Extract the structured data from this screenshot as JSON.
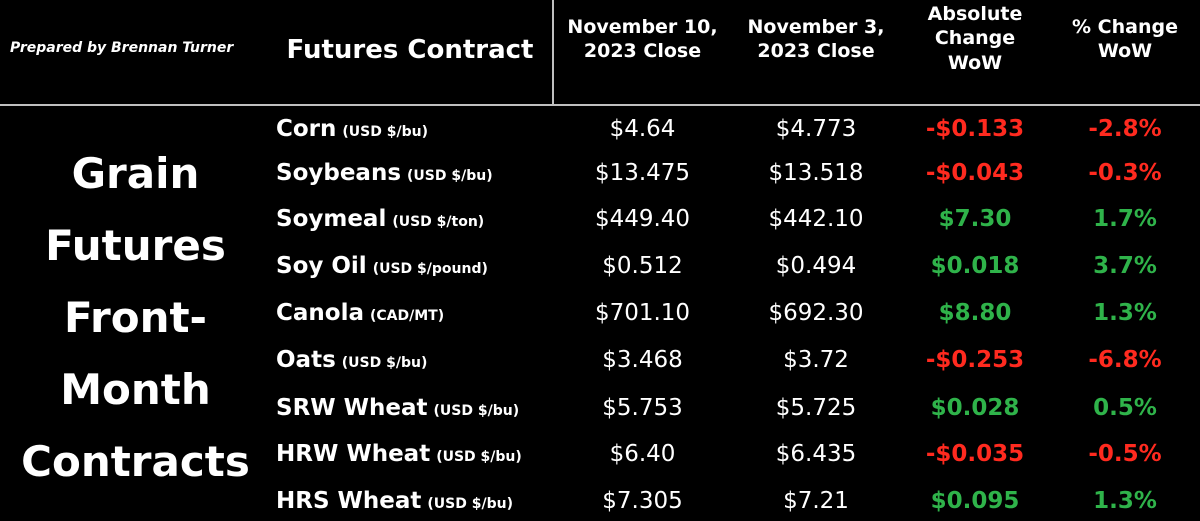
{
  "credit": "Prepared by Brennan Turner",
  "headers": {
    "contract": "Futures Contract",
    "col1": "November 10,\n2023 Close",
    "col2": "November 3,\n2023 Close",
    "col3": "Absolute\nChange\nWoW",
    "col4": "% Change\nWoW"
  },
  "category": [
    "Grain",
    "Futures",
    "Front-",
    "Month",
    "Contracts"
  ],
  "colors": {
    "negative": "#ff2a1f",
    "positive": "#2fb34a",
    "background": "#000000",
    "text": "#ffffff"
  },
  "rows": [
    {
      "name": "Corn",
      "unit": "(USD $/bu)",
      "nov10": "$4.64",
      "nov3": "$4.773",
      "abs_change": "-$0.133",
      "pct_change": "-2.8%",
      "direction": "neg"
    },
    {
      "name": "Soybeans",
      "unit": "(USD $/bu)",
      "nov10": "$13.475",
      "nov3": "$13.518",
      "abs_change": "-$0.043",
      "pct_change": "-0.3%",
      "direction": "neg"
    },
    {
      "name": "Soymeal",
      "unit": "(USD $/ton)",
      "nov10": "$449.40",
      "nov3": "$442.10",
      "abs_change": "$7.30",
      "pct_change": "1.7%",
      "direction": "pos"
    },
    {
      "name": "Soy Oil",
      "unit": "(USD $/pound)",
      "nov10": "$0.512",
      "nov3": "$0.494",
      "abs_change": "$0.018",
      "pct_change": "3.7%",
      "direction": "pos"
    },
    {
      "name": "Canola",
      "unit": "(CAD/MT)",
      "nov10": "$701.10",
      "nov3": "$692.30",
      "abs_change": "$8.80",
      "pct_change": "1.3%",
      "direction": "pos"
    },
    {
      "name": "Oats",
      "unit": "(USD $/bu)",
      "nov10": "$3.468",
      "nov3": "$3.72",
      "abs_change": "-$0.253",
      "pct_change": "-6.8%",
      "direction": "neg"
    },
    {
      "name": "SRW Wheat",
      "unit": "(USD $/bu)",
      "nov10": "$5.753",
      "nov3": "$5.725",
      "abs_change": "$0.028",
      "pct_change": "0.5%",
      "direction": "pos"
    },
    {
      "name": "HRW Wheat",
      "unit": "(USD $/bu)",
      "nov10": "$6.40",
      "nov3": "$6.435",
      "abs_change": "-$0.035",
      "pct_change": "-0.5%",
      "direction": "neg"
    },
    {
      "name": "HRS Wheat",
      "unit": "(USD $/bu)",
      "nov10": "$7.305",
      "nov3": "$7.21",
      "abs_change": "$0.095",
      "pct_change": "1.3%",
      "direction": "pos"
    }
  ]
}
